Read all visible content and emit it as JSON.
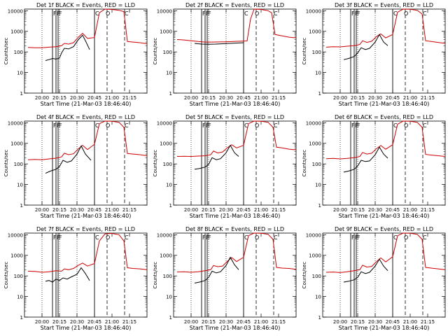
{
  "chart_data": {
    "type": "line",
    "scale": "log-y",
    "time_ticks": [
      "20:00",
      "20:15",
      "20:30",
      "20:45",
      "21:00",
      "21:15"
    ],
    "y_ticks": [
      "1",
      "10",
      "100",
      "1000",
      "10000"
    ],
    "ylim": [
      1,
      12000
    ],
    "ylabel": "Counts/sec",
    "xlabel": "Start Time (21-Mar-03 18:46:40)",
    "series_labels": {
      "black": "Events",
      "red": "LLD"
    },
    "colors": {
      "events": "#000000",
      "lld": "#cc0000"
    },
    "markers": {
      "top_letters": [
        "F",
        "F",
        "F",
        "C",
        "O",
        "C"
      ]
    },
    "panels": [
      {
        "title": "Det 1f BLACK = Events, RED = LLD",
        "events": [
          [
            20.05,
            38
          ],
          [
            20.1,
            42
          ],
          [
            20.15,
            48
          ],
          [
            20.2,
            45
          ],
          [
            20.25,
            50
          ],
          [
            20.28,
            90
          ],
          [
            20.32,
            150
          ],
          [
            20.38,
            140
          ],
          [
            20.45,
            180
          ],
          [
            20.52,
            400
          ],
          [
            20.58,
            650
          ],
          [
            20.63,
            300
          ],
          [
            20.68,
            130
          ]
        ],
        "lld": [
          [
            19.8,
            165
          ],
          [
            19.9,
            160
          ],
          [
            20.0,
            158
          ],
          [
            20.1,
            170
          ],
          [
            20.2,
            178
          ],
          [
            20.28,
            200
          ],
          [
            20.32,
            260
          ],
          [
            20.38,
            240
          ],
          [
            20.45,
            280
          ],
          [
            20.52,
            520
          ],
          [
            20.58,
            800
          ],
          [
            20.65,
            450
          ],
          [
            20.75,
            500
          ],
          [
            20.82,
            8000
          ],
          [
            20.9,
            12000
          ],
          [
            21.0,
            11500
          ],
          [
            21.1,
            10500
          ],
          [
            21.17,
            9000
          ],
          [
            21.22,
            320
          ],
          [
            21.3,
            300
          ],
          [
            21.4,
            280
          ],
          [
            21.5,
            250
          ]
        ]
      },
      {
        "title": "Det 2f BLACK = Events, RED = LLD",
        "events": [
          [
            20.05,
            260
          ],
          [
            20.15,
            240
          ],
          [
            20.25,
            235
          ],
          [
            20.35,
            240
          ],
          [
            20.45,
            250
          ],
          [
            20.55,
            260
          ],
          [
            20.65,
            270
          ],
          [
            20.75,
            280
          ]
        ],
        "lld": [
          [
            19.8,
            400
          ],
          [
            19.9,
            380
          ],
          [
            20.0,
            350
          ],
          [
            20.1,
            320
          ],
          [
            20.2,
            300
          ],
          [
            20.3,
            300
          ],
          [
            20.4,
            305
          ],
          [
            20.5,
            310
          ],
          [
            20.6,
            320
          ],
          [
            20.7,
            330
          ],
          [
            20.8,
            340
          ],
          [
            20.85,
            4000
          ],
          [
            20.9,
            12000
          ],
          [
            21.0,
            11500
          ],
          [
            21.1,
            10000
          ],
          [
            21.15,
            8000
          ],
          [
            21.2,
            700
          ],
          [
            21.3,
            600
          ],
          [
            21.4,
            520
          ],
          [
            21.5,
            480
          ]
        ]
      },
      {
        "title": "Det 3f BLACK = Events, RED = LLD",
        "events": [
          [
            20.05,
            42
          ],
          [
            20.12,
            48
          ],
          [
            20.2,
            60
          ],
          [
            20.25,
            90
          ],
          [
            20.3,
            160
          ],
          [
            20.36,
            130
          ],
          [
            20.42,
            150
          ],
          [
            20.5,
            300
          ],
          [
            20.56,
            700
          ],
          [
            20.62,
            300
          ],
          [
            20.68,
            200
          ]
        ],
        "lld": [
          [
            19.8,
            170
          ],
          [
            19.9,
            180
          ],
          [
            20.0,
            175
          ],
          [
            20.1,
            190
          ],
          [
            20.2,
            200
          ],
          [
            20.28,
            230
          ],
          [
            20.32,
            350
          ],
          [
            20.38,
            290
          ],
          [
            20.45,
            330
          ],
          [
            20.52,
            560
          ],
          [
            20.58,
            750
          ],
          [
            20.65,
            480
          ],
          [
            20.75,
            700
          ],
          [
            20.82,
            8500
          ],
          [
            20.9,
            12000
          ],
          [
            21.0,
            11800
          ],
          [
            21.1,
            10500
          ],
          [
            21.17,
            7000
          ],
          [
            21.22,
            350
          ],
          [
            21.3,
            320
          ],
          [
            21.4,
            290
          ],
          [
            21.5,
            260
          ]
        ]
      },
      {
        "title": "Det 4f BLACK = Events, RED = LLD",
        "events": [
          [
            20.05,
            35
          ],
          [
            20.12,
            45
          ],
          [
            20.2,
            55
          ],
          [
            20.25,
            75
          ],
          [
            20.3,
            150
          ],
          [
            20.36,
            120
          ],
          [
            20.42,
            140
          ],
          [
            20.5,
            300
          ],
          [
            20.56,
            750
          ],
          [
            20.62,
            300
          ],
          [
            20.7,
            150
          ]
        ],
        "lld": [
          [
            19.8,
            160
          ],
          [
            19.9,
            165
          ],
          [
            20.0,
            160
          ],
          [
            20.1,
            175
          ],
          [
            20.2,
            190
          ],
          [
            20.28,
            220
          ],
          [
            20.32,
            330
          ],
          [
            20.38,
            280
          ],
          [
            20.45,
            310
          ],
          [
            20.52,
            540
          ],
          [
            20.58,
            800
          ],
          [
            20.65,
            500
          ],
          [
            20.75,
            900
          ],
          [
            20.82,
            9000
          ],
          [
            20.9,
            12000
          ],
          [
            21.0,
            11800
          ],
          [
            21.1,
            10500
          ],
          [
            21.17,
            6000
          ],
          [
            21.22,
            320
          ],
          [
            21.3,
            300
          ],
          [
            21.4,
            280
          ],
          [
            21.5,
            250
          ]
        ]
      },
      {
        "title": "Det 5f BLACK = Events, RED = LLD",
        "events": [
          [
            20.05,
            55
          ],
          [
            20.12,
            60
          ],
          [
            20.2,
            70
          ],
          [
            20.25,
            95
          ],
          [
            20.3,
            200
          ],
          [
            20.36,
            160
          ],
          [
            20.42,
            180
          ],
          [
            20.5,
            350
          ],
          [
            20.56,
            800
          ],
          [
            20.62,
            350
          ],
          [
            20.68,
            230
          ]
        ],
        "lld": [
          [
            19.8,
            230
          ],
          [
            19.9,
            235
          ],
          [
            20.0,
            230
          ],
          [
            20.1,
            240
          ],
          [
            20.2,
            250
          ],
          [
            20.28,
            280
          ],
          [
            20.32,
            420
          ],
          [
            20.38,
            340
          ],
          [
            20.45,
            380
          ],
          [
            20.52,
            620
          ],
          [
            20.58,
            850
          ],
          [
            20.65,
            600
          ],
          [
            20.75,
            800
          ],
          [
            20.82,
            9000
          ],
          [
            20.9,
            12000
          ],
          [
            21.0,
            11800
          ],
          [
            21.1,
            10500
          ],
          [
            21.17,
            6000
          ],
          [
            21.22,
            650
          ],
          [
            21.3,
            600
          ],
          [
            21.4,
            520
          ],
          [
            21.5,
            480
          ]
        ]
      },
      {
        "title": "Det 6f BLACK = Events, RED = LLD",
        "events": [
          [
            20.05,
            40
          ],
          [
            20.12,
            45
          ],
          [
            20.2,
            55
          ],
          [
            20.25,
            80
          ],
          [
            20.3,
            150
          ],
          [
            20.36,
            130
          ],
          [
            20.42,
            140
          ],
          [
            20.5,
            280
          ],
          [
            20.56,
            650
          ],
          [
            20.62,
            300
          ],
          [
            20.68,
            190
          ]
        ],
        "lld": [
          [
            19.8,
            180
          ],
          [
            19.9,
            185
          ],
          [
            20.0,
            175
          ],
          [
            20.1,
            185
          ],
          [
            20.2,
            200
          ],
          [
            20.28,
            230
          ],
          [
            20.32,
            360
          ],
          [
            20.38,
            300
          ],
          [
            20.45,
            330
          ],
          [
            20.52,
            560
          ],
          [
            20.58,
            780
          ],
          [
            20.65,
            520
          ],
          [
            20.75,
            850
          ],
          [
            20.82,
            8500
          ],
          [
            20.9,
            12000
          ],
          [
            21.0,
            11800
          ],
          [
            21.1,
            10500
          ],
          [
            21.17,
            6000
          ],
          [
            21.22,
            290
          ],
          [
            21.3,
            270
          ],
          [
            21.4,
            250
          ],
          [
            21.5,
            230
          ]
        ]
      },
      {
        "title": "Det 7f BLACK = Events, RED = LLD",
        "events": [
          [
            20.05,
            55
          ],
          [
            20.1,
            60
          ],
          [
            20.15,
            50
          ],
          [
            20.2,
            70
          ],
          [
            20.25,
            60
          ],
          [
            20.3,
            80
          ],
          [
            20.36,
            70
          ],
          [
            20.42,
            90
          ],
          [
            20.5,
            120
          ],
          [
            20.56,
            250
          ],
          [
            20.62,
            130
          ],
          [
            20.68,
            60
          ]
        ],
        "lld": [
          [
            19.8,
            170
          ],
          [
            19.9,
            165
          ],
          [
            20.0,
            150
          ],
          [
            20.1,
            160
          ],
          [
            20.2,
            180
          ],
          [
            20.28,
            170
          ],
          [
            20.32,
            220
          ],
          [
            20.38,
            200
          ],
          [
            20.45,
            230
          ],
          [
            20.52,
            330
          ],
          [
            20.58,
            420
          ],
          [
            20.65,
            300
          ],
          [
            20.75,
            400
          ],
          [
            20.82,
            5000
          ],
          [
            20.9,
            11000
          ],
          [
            21.0,
            11500
          ],
          [
            21.1,
            10000
          ],
          [
            21.17,
            5000
          ],
          [
            21.22,
            250
          ],
          [
            21.3,
            230
          ],
          [
            21.4,
            220
          ],
          [
            21.5,
            200
          ]
        ]
      },
      {
        "title": "Det 8f BLACK = Events, RED = LLD",
        "events": [
          [
            20.05,
            45
          ],
          [
            20.12,
            50
          ],
          [
            20.2,
            60
          ],
          [
            20.25,
            85
          ],
          [
            20.3,
            170
          ],
          [
            20.36,
            140
          ],
          [
            20.42,
            160
          ],
          [
            20.5,
            320
          ],
          [
            20.56,
            800
          ],
          [
            20.62,
            350
          ],
          [
            20.68,
            200
          ]
        ],
        "lld": [
          [
            19.8,
            155
          ],
          [
            19.9,
            160
          ],
          [
            20.0,
            150
          ],
          [
            20.1,
            160
          ],
          [
            20.2,
            180
          ],
          [
            20.28,
            200
          ],
          [
            20.32,
            320
          ],
          [
            20.38,
            280
          ],
          [
            20.45,
            300
          ],
          [
            20.52,
            520
          ],
          [
            20.58,
            780
          ],
          [
            20.65,
            500
          ],
          [
            20.75,
            800
          ],
          [
            20.82,
            9000
          ],
          [
            20.9,
            12000
          ],
          [
            21.0,
            11800
          ],
          [
            21.1,
            10500
          ],
          [
            21.17,
            6000
          ],
          [
            21.22,
            260
          ],
          [
            21.3,
            240
          ],
          [
            21.4,
            230
          ],
          [
            21.5,
            210
          ]
        ]
      },
      {
        "title": "Det 9f BLACK = Events, RED = LLD",
        "events": [
          [
            20.05,
            50
          ],
          [
            20.12,
            55
          ],
          [
            20.2,
            65
          ],
          [
            20.25,
            85
          ],
          [
            20.3,
            160
          ],
          [
            20.36,
            130
          ],
          [
            20.42,
            150
          ],
          [
            20.5,
            300
          ],
          [
            20.56,
            650
          ],
          [
            20.62,
            300
          ],
          [
            20.68,
            180
          ]
        ],
        "lld": [
          [
            19.8,
            150
          ],
          [
            19.9,
            155
          ],
          [
            20.0,
            145
          ],
          [
            20.1,
            160
          ],
          [
            20.2,
            180
          ],
          [
            20.28,
            200
          ],
          [
            20.32,
            330
          ],
          [
            20.38,
            270
          ],
          [
            20.45,
            290
          ],
          [
            20.52,
            500
          ],
          [
            20.58,
            750
          ],
          [
            20.65,
            480
          ],
          [
            20.75,
            850
          ],
          [
            20.82,
            9000
          ],
          [
            20.9,
            12000
          ],
          [
            21.0,
            11800
          ],
          [
            21.1,
            10500
          ],
          [
            21.17,
            6000
          ],
          [
            21.22,
            260
          ],
          [
            21.3,
            240
          ],
          [
            21.4,
            220
          ],
          [
            21.5,
            200
          ]
        ]
      }
    ]
  }
}
